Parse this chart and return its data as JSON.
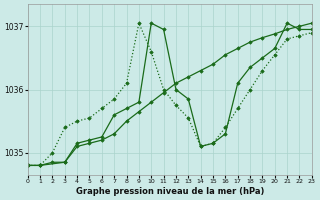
{
  "title": "Graphe pression niveau de la mer (hPa)",
  "bg_color": "#cceae7",
  "grid_color": "#aad4cc",
  "line_color": "#1a6b1a",
  "x_min": 0,
  "x_max": 23,
  "y_min": 1034.65,
  "y_max": 1037.35,
  "y_ticks": [
    1035,
    1036,
    1037
  ],
  "x_ticks": [
    0,
    1,
    2,
    3,
    4,
    5,
    6,
    7,
    8,
    9,
    10,
    11,
    12,
    13,
    14,
    15,
    16,
    17,
    18,
    19,
    20,
    21,
    22,
    23
  ],
  "series_dotted_x": [
    0,
    1,
    2,
    3,
    4,
    5,
    6,
    7,
    8,
    9,
    10,
    11,
    12,
    13,
    14,
    15,
    16,
    17,
    18,
    19,
    20,
    21,
    22,
    23
  ],
  "series_dotted_y": [
    1034.8,
    1034.8,
    1035.0,
    1035.4,
    1035.5,
    1035.55,
    1035.7,
    1035.85,
    1036.1,
    1037.05,
    1036.6,
    1036.0,
    1035.75,
    1035.55,
    1035.1,
    1035.15,
    1035.4,
    1035.7,
    1036.0,
    1036.3,
    1036.55,
    1036.8,
    1036.85,
    1036.9
  ],
  "series_solid1_x": [
    0,
    1,
    3,
    4,
    5,
    6,
    7,
    8,
    9,
    10,
    11,
    12,
    13,
    14,
    15,
    16,
    17,
    18,
    19,
    20,
    21,
    22,
    23
  ],
  "series_solid1_y": [
    1034.8,
    1034.8,
    1034.85,
    1035.15,
    1035.2,
    1035.25,
    1035.6,
    1035.7,
    1035.8,
    1037.05,
    1036.95,
    1036.0,
    1035.85,
    1035.1,
    1035.15,
    1035.3,
    1036.1,
    1036.35,
    1036.5,
    1036.65,
    1037.05,
    1036.95,
    1036.95
  ],
  "series_solid2_x": [
    0,
    1,
    2,
    3,
    4,
    5,
    6,
    7,
    8,
    9,
    10,
    11,
    12,
    13,
    14,
    15,
    16,
    17,
    18,
    19,
    20,
    21,
    22,
    23
  ],
  "series_solid2_y": [
    1034.8,
    1034.8,
    1034.85,
    1034.85,
    1035.1,
    1035.15,
    1035.2,
    1035.3,
    1035.5,
    1035.65,
    1035.8,
    1035.95,
    1036.1,
    1036.2,
    1036.3,
    1036.4,
    1036.55,
    1036.65,
    1036.75,
    1036.82,
    1036.88,
    1036.95,
    1037.0,
    1037.05
  ]
}
